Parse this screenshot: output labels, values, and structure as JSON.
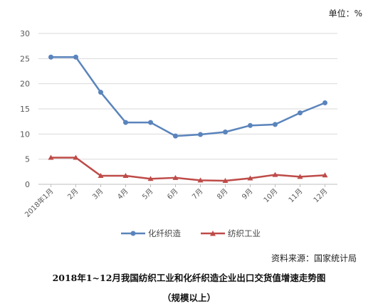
{
  "unit_label": "单位：%",
  "source": "资料来源：国家统计局",
  "caption_line1": "2018年1~12月我国纺织工业和化纤织造企业出口交货值增速走势图",
  "caption_line2": "（规模以上）",
  "chart_data": {
    "type": "line",
    "categories": [
      "2018年1月",
      "2月",
      "3月",
      "4月",
      "5月",
      "6月",
      "7月",
      "8月",
      "9月",
      "10月",
      "11月",
      "12月"
    ],
    "ylim": [
      0,
      30
    ],
    "yticks": [
      0,
      5,
      10,
      15,
      20,
      25,
      30
    ],
    "grid": true,
    "legend_position": "bottom",
    "series": [
      {
        "name": "化纤织造",
        "color": "#5a84bc",
        "marker": "circle",
        "values": [
          25.3,
          25.3,
          18.3,
          12.3,
          12.3,
          9.6,
          9.9,
          10.4,
          11.7,
          11.9,
          14.2,
          16.2
        ]
      },
      {
        "name": "纺织工业",
        "color": "#be4b48",
        "marker": "triangle",
        "values": [
          5.3,
          5.3,
          1.7,
          1.7,
          1.1,
          1.3,
          0.8,
          0.7,
          1.2,
          1.9,
          1.5,
          1.8
        ]
      }
    ]
  }
}
